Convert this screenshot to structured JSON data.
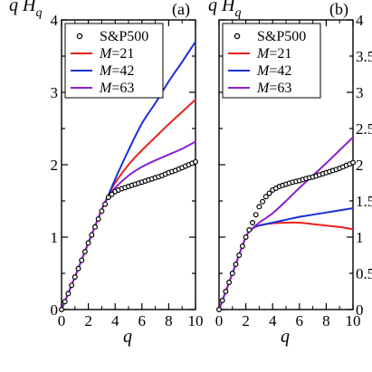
{
  "chart_data": [
    {
      "type": "line",
      "panel_label": "(a)",
      "ylabel": "q H",
      "ylabel_sub": "q",
      "xlabel": "q",
      "xlim": [
        0,
        10
      ],
      "ylim": [
        0,
        4
      ],
      "xticks": [
        "0",
        "2",
        "4",
        "6",
        "8",
        "10"
      ],
      "yticks": [
        "0",
        "1",
        "2",
        "3",
        "4"
      ],
      "legend_position": "top-left",
      "series": [
        {
          "name": "S&P500",
          "style": "markers",
          "color": "#000000",
          "x": [
            0,
            0.5,
            1,
            1.5,
            2,
            2.5,
            3,
            3.5,
            4,
            4.5,
            5,
            5.5,
            6,
            6.5,
            7,
            7.5,
            8,
            8.5,
            9,
            9.5,
            10
          ],
          "y": [
            0,
            0.22,
            0.45,
            0.68,
            0.92,
            1.14,
            1.36,
            1.55,
            1.63,
            1.67,
            1.7,
            1.73,
            1.76,
            1.79,
            1.82,
            1.85,
            1.89,
            1.92,
            1.96,
            2.0,
            2.04
          ]
        },
        {
          "name": "M=21",
          "style": "line",
          "color": "#e8211b",
          "x": [
            0,
            1,
            2,
            3,
            3.5,
            4,
            5,
            6,
            7,
            8,
            9,
            10
          ],
          "y": [
            0,
            0.45,
            0.92,
            1.38,
            1.58,
            1.75,
            2.0,
            2.2,
            2.38,
            2.56,
            2.73,
            2.9
          ]
        },
        {
          "name": "M=42",
          "style": "line",
          "color": "#1a2ed8",
          "x": [
            0,
            1,
            2,
            3,
            3.5,
            4,
            5,
            6,
            7,
            8,
            9,
            10
          ],
          "y": [
            0,
            0.45,
            0.92,
            1.38,
            1.58,
            1.8,
            2.2,
            2.57,
            2.85,
            3.15,
            3.42,
            3.7
          ]
        },
        {
          "name": "M=63",
          "style": "line",
          "color": "#8a1fd0",
          "x": [
            0,
            1,
            2,
            3,
            3.5,
            4,
            5,
            6,
            7,
            8,
            9,
            10
          ],
          "y": [
            0,
            0.45,
            0.92,
            1.38,
            1.55,
            1.68,
            1.85,
            1.97,
            2.06,
            2.14,
            2.22,
            2.32
          ]
        }
      ]
    },
    {
      "type": "line",
      "panel_label": "(b)",
      "ylabel": "q H",
      "ylabel_sub": "q",
      "xlabel": "q",
      "xlim": [
        0,
        10
      ],
      "ylim": [
        0,
        4
      ],
      "xticks": [
        "0",
        "2",
        "4",
        "6",
        "8",
        "10"
      ],
      "yticks_right": [
        "0",
        "0.5",
        "1",
        "1.5",
        "2",
        "2.5",
        "3",
        "3.5",
        "4"
      ],
      "legend_position": "top-left",
      "series": [
        {
          "name": "S&P500",
          "style": "markers",
          "color": "#000000",
          "x": [
            0,
            0.5,
            1,
            1.5,
            2,
            2.5,
            3,
            3.5,
            4,
            4.5,
            5,
            5.5,
            6,
            6.5,
            7,
            7.5,
            8,
            8.5,
            9,
            9.5,
            10
          ],
          "y": [
            0,
            0.25,
            0.5,
            0.75,
            1.0,
            1.2,
            1.42,
            1.56,
            1.65,
            1.7,
            1.73,
            1.76,
            1.78,
            1.81,
            1.83,
            1.86,
            1.89,
            1.92,
            1.95,
            1.99,
            2.03
          ]
        },
        {
          "name": "M=21",
          "style": "line",
          "color": "#e8211b",
          "x": [
            0,
            1,
            2,
            2.5,
            3,
            4,
            5,
            6,
            7,
            8,
            9,
            10
          ],
          "y": [
            0,
            0.5,
            1.0,
            1.12,
            1.16,
            1.19,
            1.2,
            1.2,
            1.18,
            1.16,
            1.14,
            1.11
          ]
        },
        {
          "name": "M=42",
          "style": "line",
          "color": "#1a2ed8",
          "x": [
            0,
            1,
            2,
            2.5,
            3,
            4,
            5,
            6,
            7,
            8,
            9,
            10
          ],
          "y": [
            0,
            0.5,
            1.0,
            1.12,
            1.16,
            1.2,
            1.24,
            1.28,
            1.31,
            1.34,
            1.37,
            1.4
          ]
        },
        {
          "name": "M=63",
          "style": "line",
          "color": "#8a1fd0",
          "x": [
            0,
            1,
            2,
            2.5,
            3,
            4,
            5,
            6,
            7,
            8,
            9,
            10
          ],
          "y": [
            0,
            0.5,
            1.0,
            1.12,
            1.2,
            1.33,
            1.5,
            1.68,
            1.85,
            2.02,
            2.2,
            2.38
          ]
        }
      ]
    }
  ]
}
